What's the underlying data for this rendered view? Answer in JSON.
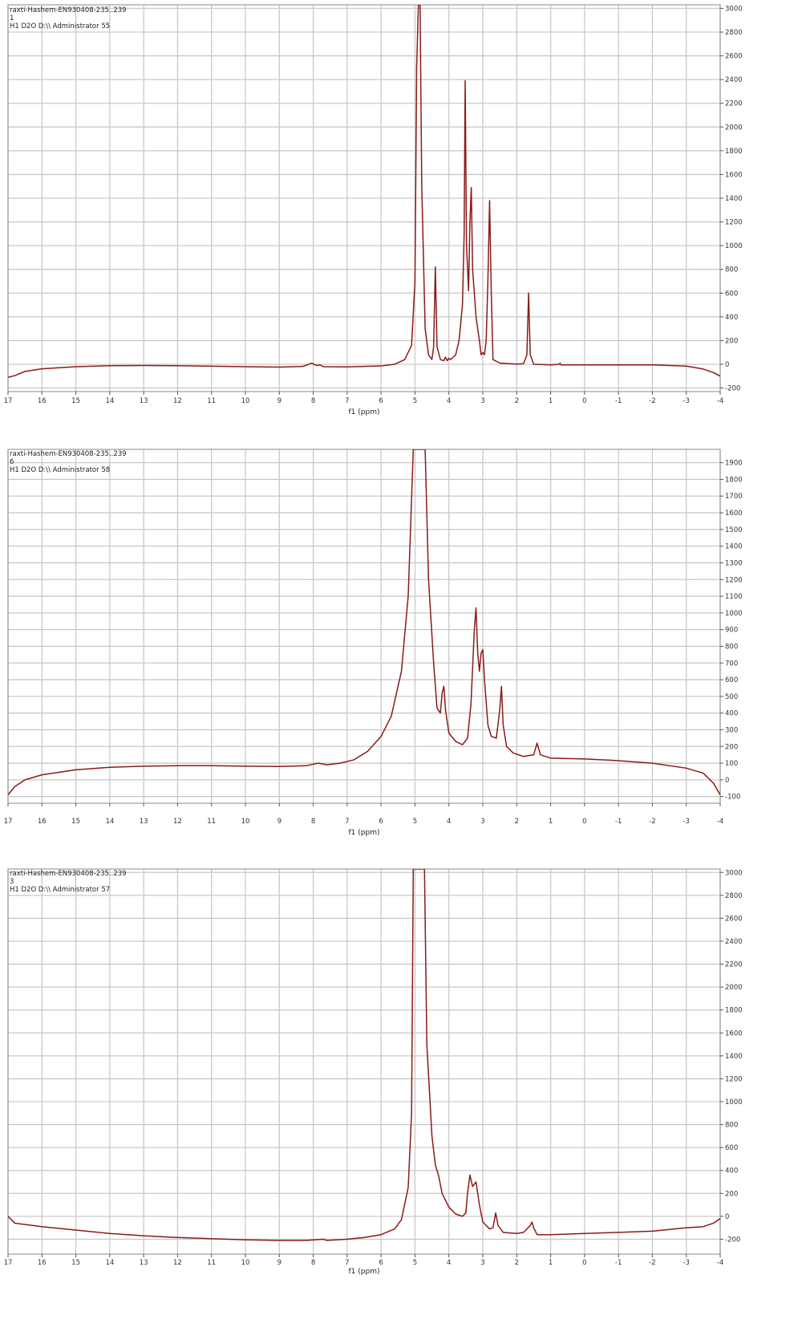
{
  "colors": {
    "trace": "#8b1a1a",
    "grid": "#c9c9c9",
    "frame": "#8a8a8a"
  },
  "chart_data": [
    {
      "type": "line",
      "info": [
        "raxti-Hashem-EN930408-235..239",
        "1",
        "H1 D2O D:\\\\ Administrator 55"
      ],
      "xlabel": "f1 (ppm)",
      "ylabel": "",
      "xlim": [
        17,
        -4
      ],
      "ylim": [
        -230,
        3030
      ],
      "grid": true,
      "x_ticks": [
        17,
        16,
        15,
        14,
        13,
        12,
        11,
        10,
        9,
        8,
        7,
        6,
        5,
        4,
        3,
        2,
        1,
        0,
        -1,
        -2,
        -3,
        -4
      ],
      "y_ticks": [
        -200,
        0,
        200,
        400,
        600,
        800,
        1000,
        1200,
        1400,
        1600,
        1800,
        2000,
        2200,
        2400,
        2600,
        2800,
        3000
      ],
      "series": [
        {
          "values": [
            [
              17,
              -110
            ],
            [
              16.8,
              -95
            ],
            [
              16.5,
              -60
            ],
            [
              16,
              -38
            ],
            [
              15,
              -20
            ],
            [
              14,
              -12
            ],
            [
              13,
              -10
            ],
            [
              12,
              -12
            ],
            [
              11,
              -16
            ],
            [
              10,
              -20
            ],
            [
              9,
              -24
            ],
            [
              8.3,
              -18
            ],
            [
              8.05,
              10
            ],
            [
              7.9,
              -10
            ],
            [
              7.8,
              -5
            ],
            [
              7.7,
              -20
            ],
            [
              7,
              -22
            ],
            [
              6,
              -14
            ],
            [
              5.6,
              0
            ],
            [
              5.3,
              40
            ],
            [
              5.1,
              160
            ],
            [
              5.0,
              700
            ],
            [
              4.95,
              2500
            ],
            [
              4.9,
              3030
            ],
            [
              4.85,
              3030
            ],
            [
              4.8,
              1500
            ],
            [
              4.7,
              300
            ],
            [
              4.6,
              80
            ],
            [
              4.5,
              40
            ],
            [
              4.45,
              150
            ],
            [
              4.4,
              820
            ],
            [
              4.35,
              150
            ],
            [
              4.25,
              40
            ],
            [
              4.15,
              30
            ],
            [
              4.1,
              60
            ],
            [
              4.05,
              30
            ],
            [
              4.0,
              50
            ],
            [
              3.95,
              40
            ],
            [
              3.8,
              80
            ],
            [
              3.7,
              200
            ],
            [
              3.6,
              500
            ],
            [
              3.55,
              1100
            ],
            [
              3.52,
              2390
            ],
            [
              3.48,
              1000
            ],
            [
              3.42,
              620
            ],
            [
              3.38,
              1200
            ],
            [
              3.34,
              1490
            ],
            [
              3.3,
              800
            ],
            [
              3.2,
              400
            ],
            [
              3.1,
              200
            ],
            [
              3.05,
              80
            ],
            [
              3.0,
              100
            ],
            [
              2.95,
              80
            ],
            [
              2.9,
              200
            ],
            [
              2.85,
              700
            ],
            [
              2.8,
              1380
            ],
            [
              2.75,
              600
            ],
            [
              2.7,
              40
            ],
            [
              2.5,
              10
            ],
            [
              2.0,
              2
            ],
            [
              1.8,
              5
            ],
            [
              1.7,
              80
            ],
            [
              1.65,
              600
            ],
            [
              1.6,
              80
            ],
            [
              1.5,
              0
            ],
            [
              1.0,
              -5
            ],
            [
              0.75,
              0
            ],
            [
              0.72,
              10
            ],
            [
              0.7,
              -5
            ],
            [
              0,
              -5
            ],
            [
              -1,
              -5
            ],
            [
              -2,
              -5
            ],
            [
              -3,
              -15
            ],
            [
              -3.5,
              -40
            ],
            [
              -3.8,
              -70
            ],
            [
              -4,
              -100
            ]
          ]
        }
      ]
    },
    {
      "type": "line",
      "info": [
        "raxti-Hashem-EN930408-235..239",
        "6",
        "H1 D2O D:\\\\ Administrator 58"
      ],
      "xlabel": "f1 (ppm)",
      "ylabel": "",
      "xlim": [
        17,
        -4
      ],
      "ylim": [
        -140,
        1980
      ],
      "grid": true,
      "x_ticks": [
        17,
        16,
        15,
        14,
        13,
        12,
        11,
        10,
        9,
        8,
        7,
        6,
        5,
        4,
        3,
        2,
        1,
        0,
        -1,
        -2,
        -3,
        -4
      ],
      "y_ticks": [
        -100,
        0,
        100,
        200,
        300,
        400,
        500,
        600,
        700,
        800,
        900,
        1000,
        1100,
        1200,
        1300,
        1400,
        1500,
        1600,
        1700,
        1800,
        1900
      ],
      "series": [
        {
          "values": [
            [
              17,
              -90
            ],
            [
              16.8,
              -40
            ],
            [
              16.5,
              0
            ],
            [
              16,
              30
            ],
            [
              15,
              60
            ],
            [
              14,
              75
            ],
            [
              13,
              82
            ],
            [
              12,
              85
            ],
            [
              11,
              85
            ],
            [
              10,
              82
            ],
            [
              9,
              80
            ],
            [
              8.2,
              85
            ],
            [
              7.85,
              100
            ],
            [
              7.6,
              90
            ],
            [
              7.2,
              100
            ],
            [
              6.8,
              120
            ],
            [
              6.4,
              170
            ],
            [
              6.0,
              260
            ],
            [
              5.7,
              380
            ],
            [
              5.4,
              650
            ],
            [
              5.2,
              1100
            ],
            [
              5.05,
              1980
            ],
            [
              4.7,
              1980
            ],
            [
              4.6,
              1200
            ],
            [
              4.45,
              700
            ],
            [
              4.35,
              430
            ],
            [
              4.25,
              400
            ],
            [
              4.2,
              520
            ],
            [
              4.15,
              560
            ],
            [
              4.1,
              420
            ],
            [
              4.0,
              280
            ],
            [
              3.8,
              230
            ],
            [
              3.6,
              210
            ],
            [
              3.45,
              250
            ],
            [
              3.35,
              450
            ],
            [
              3.25,
              900
            ],
            [
              3.2,
              1030
            ],
            [
              3.15,
              760
            ],
            [
              3.1,
              650
            ],
            [
              3.05,
              760
            ],
            [
              3.0,
              780
            ],
            [
              2.95,
              600
            ],
            [
              2.85,
              330
            ],
            [
              2.75,
              260
            ],
            [
              2.6,
              250
            ],
            [
              2.5,
              420
            ],
            [
              2.45,
              560
            ],
            [
              2.4,
              330
            ],
            [
              2.3,
              200
            ],
            [
              2.1,
              160
            ],
            [
              1.8,
              140
            ],
            [
              1.5,
              150
            ],
            [
              1.4,
              220
            ],
            [
              1.3,
              150
            ],
            [
              1.0,
              130
            ],
            [
              0,
              125
            ],
            [
              -1,
              115
            ],
            [
              -2,
              100
            ],
            [
              -3,
              70
            ],
            [
              -3.5,
              40
            ],
            [
              -3.8,
              -20
            ],
            [
              -4,
              -90
            ]
          ]
        }
      ]
    },
    {
      "type": "line",
      "info": [
        "raxti-Hashem-EN930408-235..239",
        "3",
        "H1 D2O D:\\\\ Administrator 57"
      ],
      "xlabel": "f1 (ppm)",
      "ylabel": "",
      "xlim": [
        17,
        -4
      ],
      "ylim": [
        -330,
        3030
      ],
      "grid": true,
      "x_ticks": [
        17,
        16,
        15,
        14,
        13,
        12,
        11,
        10,
        9,
        8,
        7,
        6,
        5,
        4,
        3,
        2,
        1,
        0,
        -1,
        -2,
        -3,
        -4
      ],
      "y_ticks": [
        -200,
        0,
        200,
        400,
        600,
        800,
        1000,
        1200,
        1400,
        1600,
        1800,
        2000,
        2200,
        2400,
        2600,
        2800,
        3000
      ],
      "series": [
        {
          "values": [
            [
              17,
              0
            ],
            [
              16.8,
              -60
            ],
            [
              16,
              -90
            ],
            [
              15,
              -120
            ],
            [
              14,
              -150
            ],
            [
              13,
              -170
            ],
            [
              12,
              -185
            ],
            [
              11,
              -195
            ],
            [
              10,
              -205
            ],
            [
              9,
              -210
            ],
            [
              8.2,
              -210
            ],
            [
              7.7,
              -200
            ],
            [
              7.6,
              -210
            ],
            [
              7,
              -200
            ],
            [
              6.5,
              -185
            ],
            [
              6.0,
              -160
            ],
            [
              5.6,
              -110
            ],
            [
              5.4,
              -30
            ],
            [
              5.2,
              250
            ],
            [
              5.1,
              900
            ],
            [
              5.05,
              3030
            ],
            [
              4.72,
              3030
            ],
            [
              4.65,
              1500
            ],
            [
              4.5,
              700
            ],
            [
              4.4,
              450
            ],
            [
              4.3,
              350
            ],
            [
              4.2,
              200
            ],
            [
              4.0,
              80
            ],
            [
              3.8,
              20
            ],
            [
              3.6,
              0
            ],
            [
              3.5,
              30
            ],
            [
              3.45,
              200
            ],
            [
              3.38,
              360
            ],
            [
              3.3,
              260
            ],
            [
              3.25,
              280
            ],
            [
              3.2,
              300
            ],
            [
              3.1,
              100
            ],
            [
              3.0,
              -50
            ],
            [
              2.8,
              -110
            ],
            [
              2.7,
              -100
            ],
            [
              2.62,
              30
            ],
            [
              2.55,
              -80
            ],
            [
              2.4,
              -140
            ],
            [
              2.0,
              -150
            ],
            [
              1.8,
              -140
            ],
            [
              1.6,
              -80
            ],
            [
              1.55,
              -50
            ],
            [
              1.5,
              -100
            ],
            [
              1.4,
              -160
            ],
            [
              1,
              -160
            ],
            [
              0,
              -150
            ],
            [
              -1,
              -140
            ],
            [
              -2,
              -130
            ],
            [
              -3,
              -100
            ],
            [
              -3.5,
              -90
            ],
            [
              -3.8,
              -60
            ],
            [
              -4,
              -20
            ]
          ]
        }
      ]
    }
  ]
}
